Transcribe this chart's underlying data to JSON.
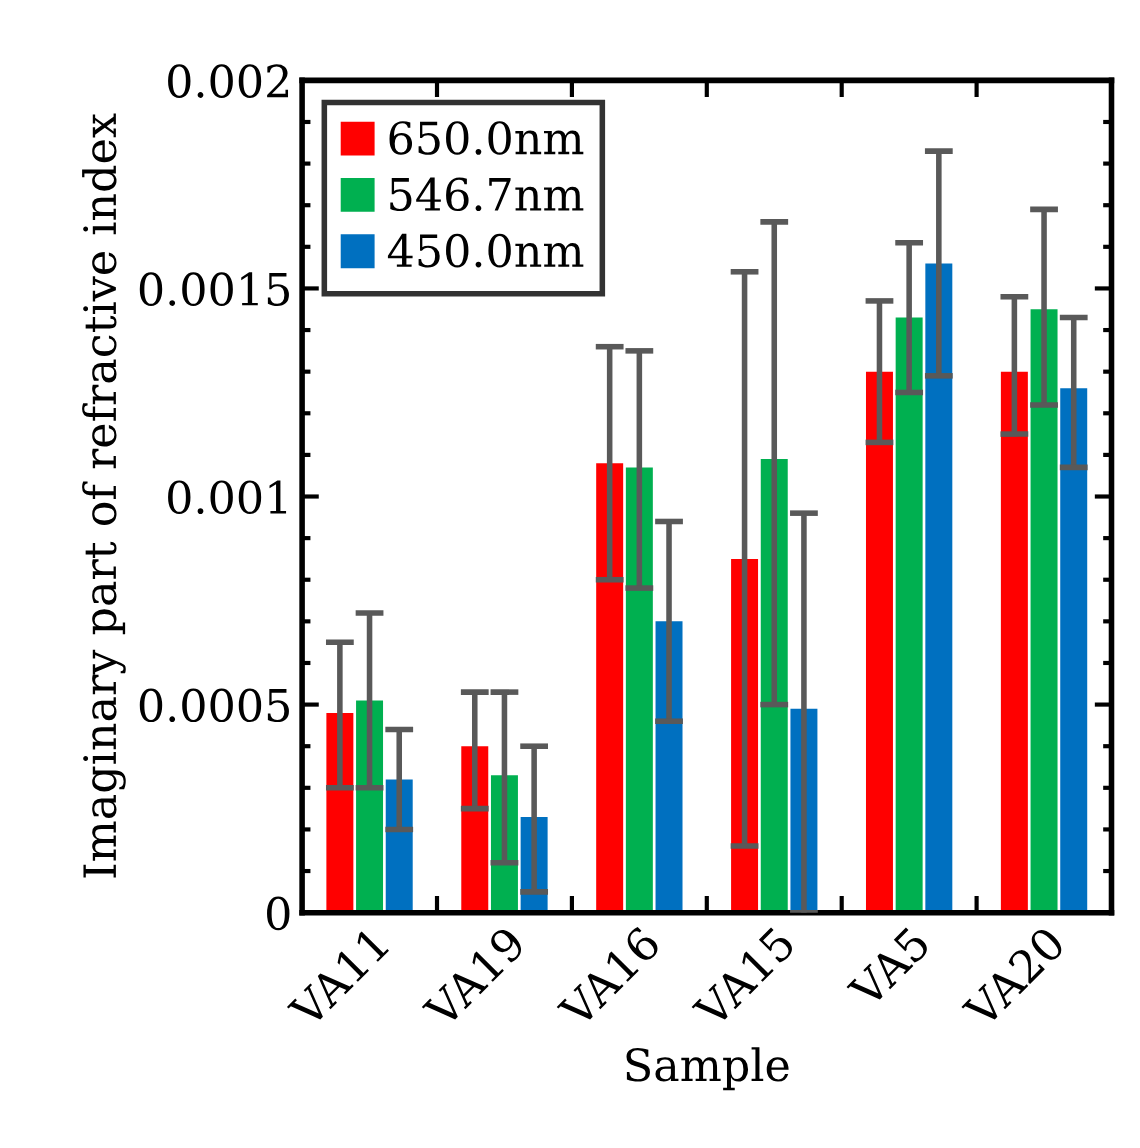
{
  "chart_data": {
    "type": "bar",
    "xlabel": "Sample",
    "ylabel": "Imaginary part of refractive index",
    "categories": [
      "VA11",
      "VA19",
      "VA16",
      "VA15",
      "VA5",
      "VA20"
    ],
    "series": [
      {
        "name": "650.0nm",
        "color": "#ff0000",
        "values": [
          0.00048,
          0.0004,
          0.00108,
          0.00085,
          0.0013,
          0.0013
        ],
        "errors": [
          [
            0.0003,
            0.00065
          ],
          [
            0.00025,
            0.00053
          ],
          [
            0.0008,
            0.00136
          ],
          [
            0.00016,
            0.00154
          ],
          [
            0.00113,
            0.00147
          ],
          [
            0.00115,
            0.00148
          ]
        ]
      },
      {
        "name": "546.7nm",
        "color": "#00b050",
        "values": [
          0.00051,
          0.00033,
          0.00107,
          0.00109,
          0.00143,
          0.00145
        ],
        "errors": [
          [
            0.0003,
            0.00072
          ],
          [
            0.00012,
            0.00053
          ],
          [
            0.00078,
            0.00135
          ],
          [
            0.0005,
            0.00166
          ],
          [
            0.00125,
            0.00161
          ],
          [
            0.00122,
            0.00169
          ]
        ]
      },
      {
        "name": "450.0nm",
        "color": "#0070c0",
        "values": [
          0.00032,
          0.00023,
          0.0007,
          0.00049,
          0.00156,
          0.00126
        ],
        "errors": [
          [
            0.0002,
            0.00044
          ],
          [
            5e-05,
            0.0004
          ],
          [
            0.00046,
            0.00094
          ],
          [
            0.0,
            0.00096
          ],
          [
            0.00129,
            0.00183
          ],
          [
            0.00107,
            0.00143
          ]
        ]
      }
    ],
    "ylim": [
      0,
      0.002
    ],
    "yticks": [
      0,
      0.0005,
      0.001,
      0.0015,
      0.002
    ],
    "grid": false,
    "legend": "top left"
  }
}
